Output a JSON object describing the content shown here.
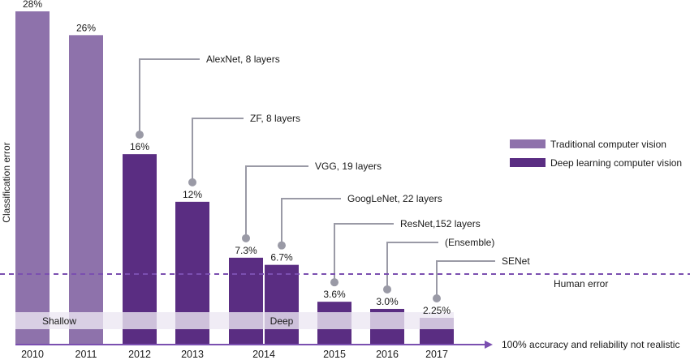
{
  "chart_data": {
    "type": "bar",
    "title": "",
    "xlabel": "",
    "ylabel": "Classification error",
    "ylim": [
      0,
      28
    ],
    "grid": false,
    "categories": [
      "2010",
      "2011",
      "2012",
      "2013",
      "2014",
      "2014",
      "2015",
      "2016",
      "2017"
    ],
    "x_tick_labels": [
      "2010",
      "2011",
      "2012",
      "2013",
      "2014",
      "2015",
      "2016",
      "2017"
    ],
    "bars": [
      {
        "year": "2010",
        "value": 28,
        "label": "28%",
        "series": "traditional",
        "annotation": ""
      },
      {
        "year": "2011",
        "value": 26,
        "label": "26%",
        "series": "traditional",
        "annotation": ""
      },
      {
        "year": "2012",
        "value": 16,
        "label": "16%",
        "series": "deep",
        "annotation": "AlexNet, 8 layers"
      },
      {
        "year": "2013",
        "value": 12,
        "label": "12%",
        "series": "deep",
        "annotation": "ZF, 8 layers"
      },
      {
        "year": "2014",
        "value": 7.3,
        "label": "7.3%",
        "series": "deep",
        "annotation": "VGG, 19 layers"
      },
      {
        "year": "2014",
        "value": 6.7,
        "label": "6.7%",
        "series": "deep",
        "annotation": "GoogLeNet, 22 layers"
      },
      {
        "year": "2015",
        "value": 3.6,
        "label": "3.6%",
        "series": "deep",
        "annotation": "ResNet,152 layers"
      },
      {
        "year": "2016",
        "value": 3.0,
        "label": "3.0%",
        "series": "deep",
        "annotation": "(Ensemble)"
      },
      {
        "year": "2017",
        "value": 2.25,
        "label": "2.25%",
        "series": "deep",
        "annotation": "SENet"
      }
    ],
    "series": [
      {
        "name": "Traditional computer vision",
        "key": "traditional",
        "color": "#8e72ab"
      },
      {
        "name": "Deep learning computer vision",
        "key": "deep",
        "color": "#5a2d82"
      }
    ],
    "legend": {
      "position": "right",
      "items": [
        "Traditional computer vision",
        "Deep learning computer vision"
      ]
    },
    "reference_line": {
      "label": "Human error",
      "value": 6.1,
      "color": "#7b4fb0"
    },
    "bands": [
      {
        "label": "Shallow",
        "from": "2010",
        "to": "2011"
      },
      {
        "label": "Deep",
        "from": "2012",
        "to": "2017"
      }
    ],
    "axis_note": "100% accuracy and reliability not realistic",
    "colors": {
      "callout": "#9a9aa6",
      "band": "#e4dced",
      "axis": "#7b4fb0"
    }
  }
}
